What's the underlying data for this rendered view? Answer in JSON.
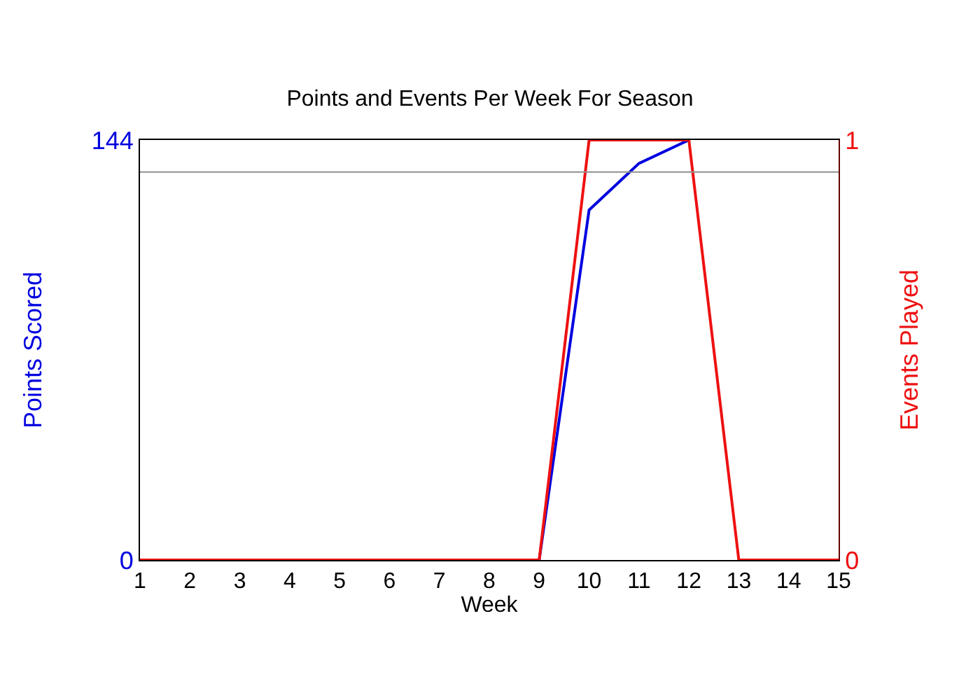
{
  "chart_data": {
    "type": "line",
    "title": "Points and Events Per Week For Season",
    "xlabel": "Week",
    "ylabel": "Points Scored",
    "y2label": "Events Played",
    "x": [
      1,
      2,
      3,
      4,
      5,
      6,
      7,
      8,
      9,
      10,
      11,
      12,
      13,
      14,
      15
    ],
    "series": [
      {
        "color": "#0000e0",
        "values": [
          null,
          null,
          null,
          null,
          null,
          null,
          null,
          null,
          0,
          120,
          136,
          144,
          null,
          null,
          null
        ]
      },
      {
        "color": "#ee1111",
        "axis": "y2",
        "values": [
          0,
          0,
          0,
          0,
          0,
          0,
          0,
          0,
          0,
          1,
          1,
          1,
          0,
          0,
          0
        ]
      }
    ],
    "xlim": [
      1,
      15
    ],
    "xticks": [
      1,
      2,
      3,
      4,
      5,
      6,
      7,
      8,
      9,
      10,
      11,
      12,
      13,
      14,
      15
    ],
    "ylim": [
      0,
      144
    ],
    "yticks": [
      0,
      144
    ],
    "y2lim": [
      0,
      1
    ],
    "y2ticks": [
      0,
      1
    ],
    "ref_lines": [
      {
        "axis": "y",
        "value": 133,
        "color": "#909090"
      }
    ],
    "grid": false,
    "marker": "none",
    "line_style": "solid"
  }
}
